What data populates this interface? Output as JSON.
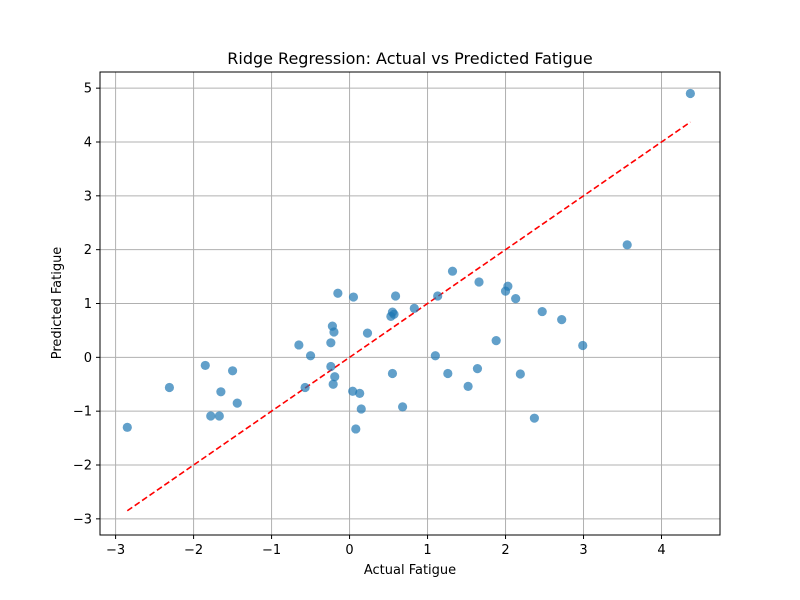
{
  "chart_data": {
    "type": "scatter",
    "title": "Ridge Regression: Actual vs Predicted Fatigue",
    "xlabel": "Actual Fatigue",
    "ylabel": "Predicted Fatigue",
    "xlim": [
      -3.2,
      4.75
    ],
    "ylim": [
      -3.3,
      5.3
    ],
    "xticks": [
      -3,
      -2,
      -1,
      0,
      1,
      2,
      3,
      4
    ],
    "yticks": [
      -3,
      -2,
      -1,
      0,
      1,
      2,
      3,
      4,
      5
    ],
    "xtick_labels": [
      "−3",
      "−2",
      "−1",
      "0",
      "1",
      "2",
      "3",
      "4"
    ],
    "ytick_labels": [
      "−3",
      "−2",
      "−1",
      "0",
      "1",
      "2",
      "3",
      "4",
      "5"
    ],
    "grid": true,
    "point_color": "#1f77b4",
    "point_alpha": 0.7,
    "reference_line": {
      "x": [
        -2.85,
        4.37
      ],
      "y": [
        -2.85,
        4.37
      ],
      "color": "#ff0000",
      "style": "dashed"
    },
    "points": [
      {
        "x": -2.85,
        "y": -1.3
      },
      {
        "x": -2.31,
        "y": -0.56
      },
      {
        "x": -1.85,
        "y": -0.15
      },
      {
        "x": -1.78,
        "y": -1.09
      },
      {
        "x": -1.67,
        "y": -1.09
      },
      {
        "x": -1.65,
        "y": -0.64
      },
      {
        "x": -1.5,
        "y": -0.25
      },
      {
        "x": -1.44,
        "y": -0.85
      },
      {
        "x": -0.65,
        "y": 0.23
      },
      {
        "x": -0.57,
        "y": -0.56
      },
      {
        "x": -0.5,
        "y": 0.03
      },
      {
        "x": -0.24,
        "y": 0.27
      },
      {
        "x": -0.24,
        "y": -0.17
      },
      {
        "x": -0.22,
        "y": 0.58
      },
      {
        "x": -0.21,
        "y": -0.5
      },
      {
        "x": -0.2,
        "y": 0.47
      },
      {
        "x": -0.19,
        "y": -0.36
      },
      {
        "x": -0.15,
        "y": 1.19
      },
      {
        "x": 0.04,
        "y": -0.63
      },
      {
        "x": 0.05,
        "y": 1.12
      },
      {
        "x": 0.08,
        "y": -1.33
      },
      {
        "x": 0.13,
        "y": -0.67
      },
      {
        "x": 0.15,
        "y": -0.96
      },
      {
        "x": 0.23,
        "y": 0.45
      },
      {
        "x": 0.53,
        "y": 0.76
      },
      {
        "x": 0.55,
        "y": 0.84
      },
      {
        "x": 0.55,
        "y": -0.3
      },
      {
        "x": 0.57,
        "y": 0.8
      },
      {
        "x": 0.59,
        "y": 1.14
      },
      {
        "x": 0.68,
        "y": -0.92
      },
      {
        "x": 0.83,
        "y": 0.91
      },
      {
        "x": 1.1,
        "y": 0.03
      },
      {
        "x": 1.13,
        "y": 1.14
      },
      {
        "x": 1.26,
        "y": -0.3
      },
      {
        "x": 1.32,
        "y": 1.6
      },
      {
        "x": 1.52,
        "y": -0.54
      },
      {
        "x": 1.64,
        "y": -0.21
      },
      {
        "x": 1.66,
        "y": 1.4
      },
      {
        "x": 1.88,
        "y": 0.31
      },
      {
        "x": 2.0,
        "y": 1.23
      },
      {
        "x": 2.03,
        "y": 1.32
      },
      {
        "x": 2.13,
        "y": 1.09
      },
      {
        "x": 2.19,
        "y": -0.31
      },
      {
        "x": 2.37,
        "y": -1.13
      },
      {
        "x": 2.47,
        "y": 0.85
      },
      {
        "x": 2.72,
        "y": 0.7
      },
      {
        "x": 2.99,
        "y": 0.22
      },
      {
        "x": 3.56,
        "y": 2.09
      },
      {
        "x": 4.37,
        "y": 4.9
      }
    ]
  }
}
